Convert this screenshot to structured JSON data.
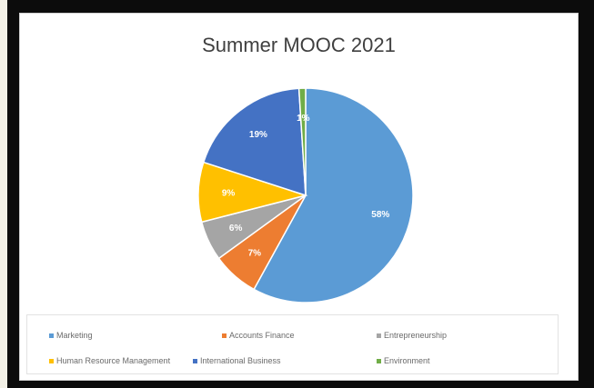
{
  "chart_data": {
    "type": "pie",
    "title": "Summer MOOC 2021",
    "slices": [
      {
        "name": "Marketing",
        "value": 58,
        "label": "58%",
        "color": "#5b9bd5"
      },
      {
        "name": "Accounts Finance",
        "value": 7,
        "label": "7%",
        "color": "#ed7d31"
      },
      {
        "name": "Entrepreneurship",
        "value": 6,
        "label": "6%",
        "color": "#a5a5a5"
      },
      {
        "name": "Human Resource Management",
        "value": 9,
        "label": "9%",
        "color": "#ffc000"
      },
      {
        "name": "International Business",
        "value": 19,
        "label": "19%",
        "color": "#4472c4"
      },
      {
        "name": "Environment",
        "value": 1,
        "label": "1%",
        "color": "#70ad47"
      }
    ],
    "legend_position": "bottom"
  }
}
